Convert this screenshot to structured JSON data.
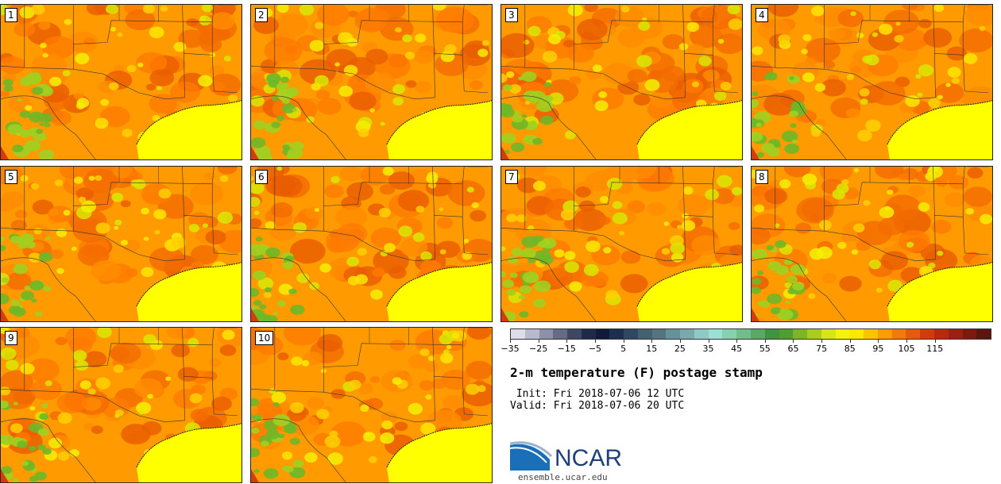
{
  "members": [
    "1",
    "2",
    "3",
    "4",
    "5",
    "6",
    "7",
    "8",
    "9",
    "10"
  ],
  "colorbar": {
    "colors": [
      "#dcdde8",
      "#b7b9cc",
      "#8d90a8",
      "#656a85",
      "#3f4765",
      "#1f2a4a",
      "#0f1b38",
      "#1d2f4e",
      "#31475f",
      "#45606f",
      "#55747f",
      "#66909a",
      "#7aa9ad",
      "#8fc8c4",
      "#9be0d4",
      "#86d2b0",
      "#6ebf8c",
      "#57aa66",
      "#3f9440",
      "#4f9f30",
      "#7db524",
      "#a9cc1d",
      "#d7e51a",
      "#f4f20f",
      "#ffe800",
      "#ffc400",
      "#ff9d00",
      "#f27a0a",
      "#e65a0c",
      "#d23c0c",
      "#b82a0e",
      "#9c200f",
      "#7c1a10",
      "#5e1510"
    ],
    "tick_labels": [
      "−35",
      "−25",
      "−15",
      "−5",
      "5",
      "15",
      "25",
      "35",
      "45",
      "55",
      "65",
      "75",
      "85",
      "95",
      "105",
      "115"
    ]
  },
  "title": "2-m temperature (F) postage stamp",
  "init_text": " Init: Fri 2018-07-06 12 UTC",
  "valid_text": "Valid: Fri 2018-07-06 20 UTC",
  "logo": {
    "text": "NCAR",
    "site": "ensemble.ucar.edu"
  }
}
